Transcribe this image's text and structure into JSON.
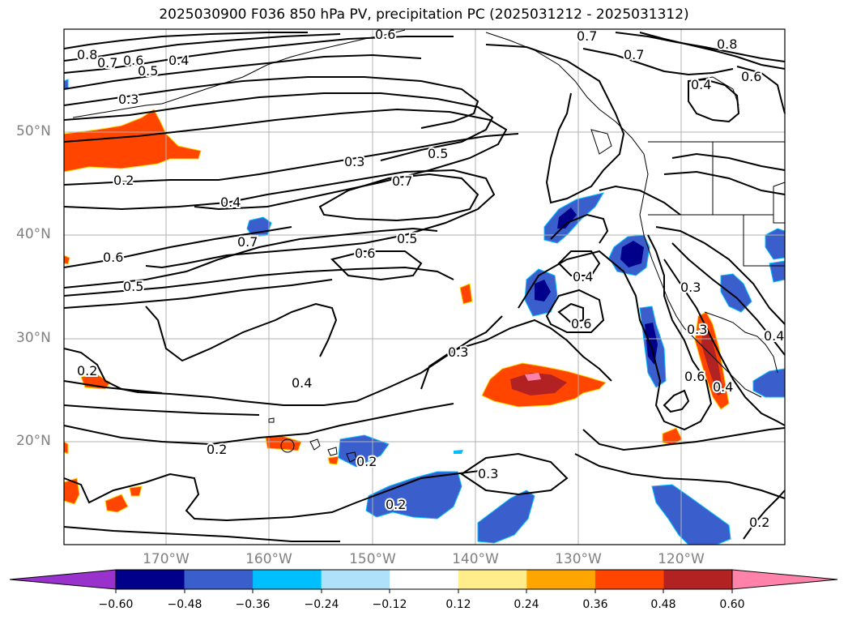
{
  "title": "2025030900 F036 850 hPa PV, precipitation PC (2025031212 - 2025031312)",
  "map": {
    "lat_labels": [
      "50°N",
      "40°N",
      "30°N",
      "20°N"
    ],
    "lon_labels": [
      "170°W",
      "160°W",
      "150°W",
      "140°W",
      "130°W",
      "120°W"
    ],
    "contour_labels": [
      "0.8",
      "0.7",
      "0.6",
      "0.5",
      "0.4",
      "0.3",
      "0.6",
      "0.7",
      "0.7",
      "0.8",
      "0.6",
      "0.4",
      "0.2",
      "0.3",
      "0.5",
      "0.7",
      "0.4",
      "0.7",
      "0.5",
      "0.6",
      "0.6",
      "0.5",
      "0.4",
      "0.6",
      "0.3",
      "0.3",
      "0.6",
      "0.3",
      "0.4",
      "0.2",
      "0.2",
      "0.2",
      "0.3",
      "0.2",
      "0.4",
      "0.4",
      "0.2"
    ]
  },
  "colorbar": {
    "labels": [
      "−0.60",
      "−0.48",
      "−0.36",
      "−0.24",
      "−0.12",
      "0.12",
      "0.24",
      "0.36",
      "0.48",
      "0.60"
    ],
    "colors": [
      "#9932cc",
      "#00008b",
      "#3a5fcd",
      "#00bfff",
      "#afe1fa",
      "#ffffff",
      "#ffec8b",
      "#ffa500",
      "#ff4500",
      "#b22222",
      "#ff82ab"
    ]
  }
}
